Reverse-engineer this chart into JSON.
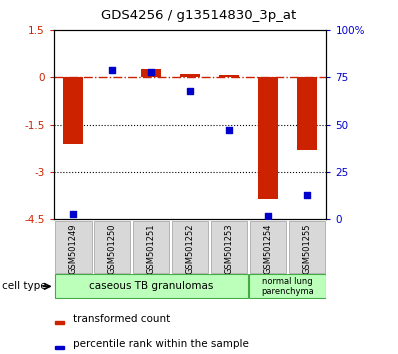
{
  "title": "GDS4256 / g13514830_3p_at",
  "samples": [
    "GSM501249",
    "GSM501250",
    "GSM501251",
    "GSM501252",
    "GSM501253",
    "GSM501254",
    "GSM501255"
  ],
  "transformed_count": [
    -2.1,
    0.0,
    0.27,
    0.1,
    0.07,
    -3.85,
    -2.3
  ],
  "percentile_rank": [
    3,
    79,
    78,
    68,
    47,
    2,
    13
  ],
  "ylim_left": [
    -4.5,
    1.5
  ],
  "ylim_right": [
    0,
    100
  ],
  "yticks_left": [
    1.5,
    0,
    -1.5,
    -3,
    -4.5
  ],
  "yticks_right": [
    100,
    75,
    50,
    25,
    0
  ],
  "ytick_labels_left": [
    "1.5",
    "0",
    "-1.5",
    "-3",
    "-4.5"
  ],
  "ytick_labels_right": [
    "100%",
    "75",
    "50",
    "25",
    "0"
  ],
  "dotted_lines": [
    -1.5,
    -3
  ],
  "bar_color": "#cc2200",
  "dot_color": "#0000cc",
  "group1_label": "caseous TB granulomas",
  "group1_color": "#bbffbb",
  "group1_count": 5,
  "group2_label": "normal lung\nparenchyma",
  "group2_color": "#bbffbb",
  "group2_count": 2,
  "legend_bar_label": "transformed count",
  "legend_dot_label": "percentile rank within the sample",
  "cell_type_label": "cell type",
  "bar_width": 0.5,
  "bg_color": "#ffffff"
}
